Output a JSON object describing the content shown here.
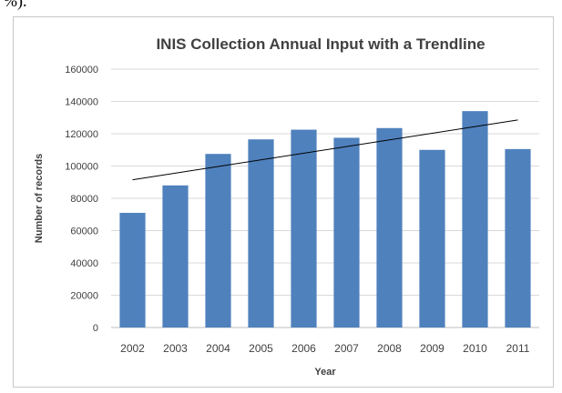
{
  "page_fragment": "%).",
  "chart_data": {
    "type": "bar",
    "title": "INIS Collection Annual Input  with a Trendline",
    "xlabel": "Year",
    "ylabel": "Number of records",
    "categories": [
      "2002",
      "2003",
      "2004",
      "2005",
      "2006",
      "2007",
      "2008",
      "2009",
      "2010",
      "2011"
    ],
    "values": [
      71000,
      88000,
      107500,
      116500,
      122500,
      117500,
      123500,
      110000,
      134000,
      110500
    ],
    "ylim": [
      0,
      160000
    ],
    "yticks": [
      "0",
      "20000",
      "40000",
      "60000",
      "80000",
      "100000",
      "120000",
      "140000",
      "160000"
    ],
    "trendline": {
      "type": "linear",
      "start": 91500,
      "end": 128500
    },
    "grid": true,
    "legend": "none",
    "colors": {
      "bar": "#4f81bd",
      "trendline": "#000000",
      "grid": "#d9d9d9",
      "text": "#404040"
    }
  }
}
